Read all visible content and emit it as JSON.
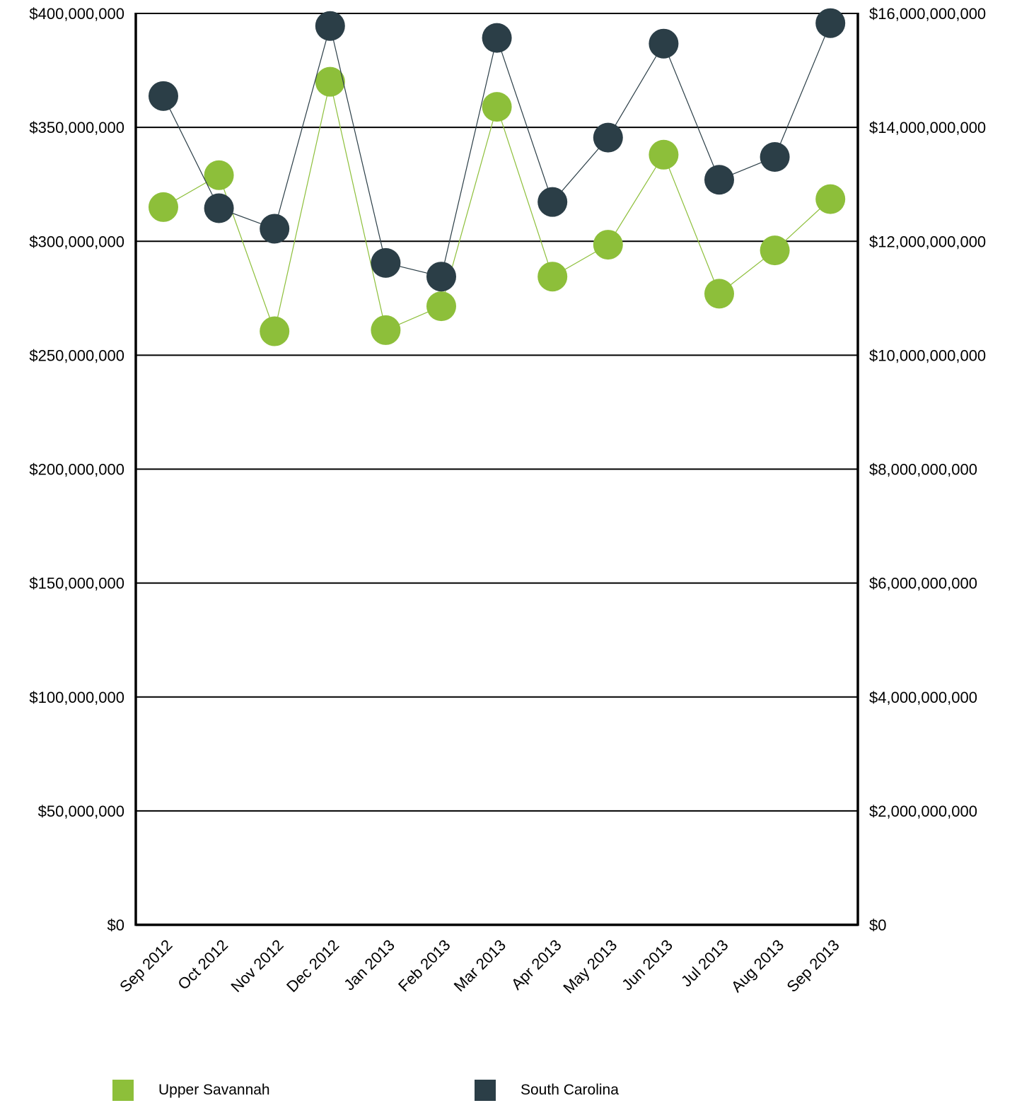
{
  "chart_data": {
    "type": "line",
    "categories": [
      "Sep 2012",
      "Oct 2012",
      "Nov 2012",
      "Dec 2012",
      "Jan 2013",
      "Feb 2013",
      "Mar 2013",
      "Apr 2013",
      "May 2013",
      "Jun 2013",
      "Jul 2013",
      "Aug 2013",
      "Sep 2013"
    ],
    "y_left": {
      "ylim": [
        0,
        400000000
      ],
      "ticks": [
        "$0",
        "$50,000,000",
        "$100,000,000",
        "$150,000,000",
        "$200,000,000",
        "$250,000,000",
        "$300,000,000",
        "$350,000,000",
        "$400,000,000"
      ]
    },
    "y_right": {
      "ylim": [
        0,
        16000000000
      ],
      "ticks": [
        "$0",
        "$2,000,000,000",
        "$4,000,000,000",
        "$6,000,000,000",
        "$8,000,000,000",
        "$10,000,000,000",
        "$12,000,000,000",
        "$14,000,000,000",
        "$16,000,000,000"
      ]
    },
    "series": [
      {
        "name": "Upper Savannah",
        "axis": "left",
        "color": "#8dbf3a",
        "values": [
          315000000,
          329000000,
          260500000,
          370000000,
          261000000,
          271500000,
          359000000,
          284500000,
          298500000,
          338000000,
          277000000,
          296000000,
          318500000
        ]
      },
      {
        "name": "South Carolina",
        "axis": "right",
        "color": "#2b3e47",
        "values": [
          14550000000,
          12580000000,
          12220000000,
          15780000000,
          11620000000,
          11380000000,
          15570000000,
          12690000000,
          13820000000,
          15470000000,
          13080000000,
          13480000000,
          15830000000
        ]
      }
    ],
    "grid": true,
    "legend_position": "bottom"
  }
}
